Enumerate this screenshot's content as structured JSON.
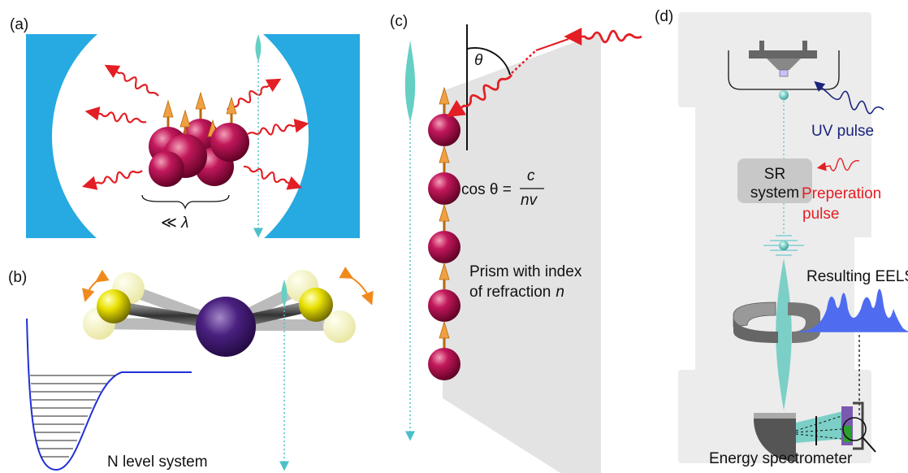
{
  "panel_a": {
    "label": "(a)",
    "size_annotation": "≪ λ"
  },
  "panel_b": {
    "label": "(b)",
    "caption": "N level system"
  },
  "panel_c": {
    "label": "(c)",
    "angle": "θ",
    "formula": {
      "lhs": "cos θ =",
      "numerator": "c",
      "denominator": "nv"
    },
    "prism_caption": [
      "Prism with index",
      "of refraction"
    ],
    "index_symbol": "n"
  },
  "panel_d": {
    "label": "(d)",
    "uv_pulse": "UV pulse",
    "sr_system": [
      "SR",
      "system"
    ],
    "preparation_pulse": [
      "Preperation",
      "pulse"
    ],
    "eels_label": "Resulting EELS",
    "spectrometer": "Energy spectrometer"
  }
}
